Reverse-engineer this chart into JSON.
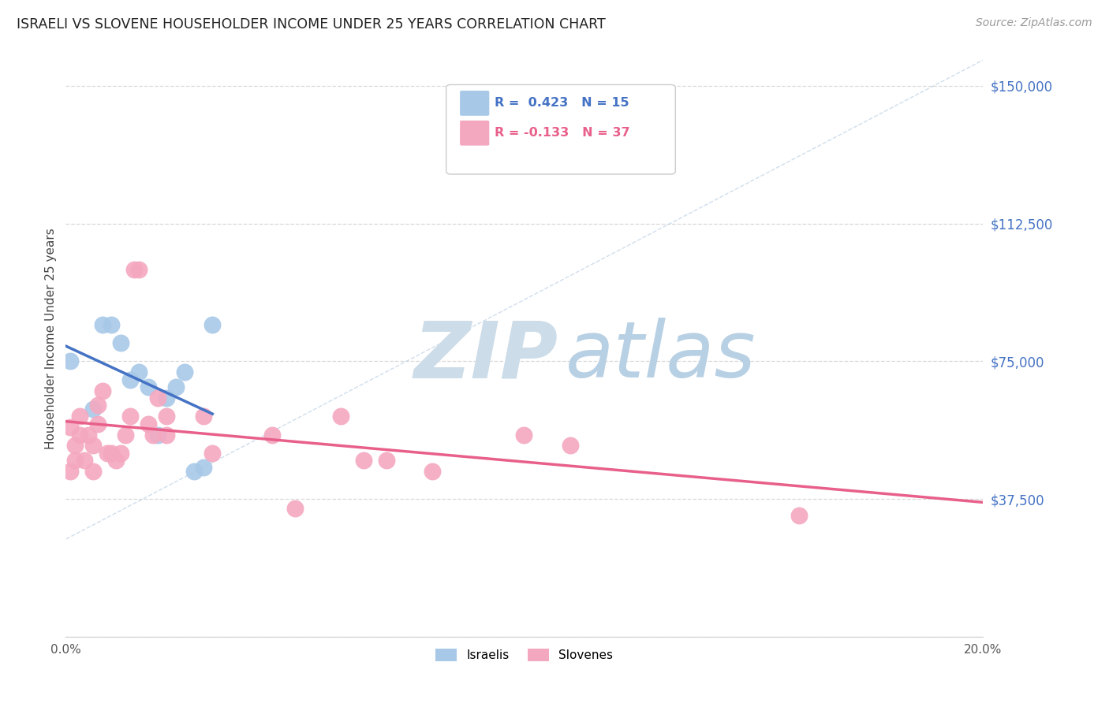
{
  "title": "ISRAELI VS SLOVENE HOUSEHOLDER INCOME UNDER 25 YEARS CORRELATION CHART",
  "source": "Source: ZipAtlas.com",
  "ylabel": "Householder Income Under 25 years",
  "xlim": [
    0.0,
    0.2
  ],
  "ylim": [
    0,
    162500
  ],
  "yticks": [
    0,
    37500,
    75000,
    112500,
    150000
  ],
  "ytick_labels": [
    "",
    "$37,500",
    "$75,000",
    "$112,500",
    "$150,000"
  ],
  "background_color": "#ffffff",
  "grid_color": "#d8d8d8",
  "israeli_color": "#a8c8e8",
  "slovene_color": "#f4a8c0",
  "israeli_R": 0.423,
  "israeli_N": 15,
  "slovene_R": -0.133,
  "slovene_N": 37,
  "regression_line_color_israeli": "#4472c4",
  "regression_line_color_slovene": "#e8608a",
  "diagonal_line_color": "#b0c8e0",
  "israeli_points_x": [
    0.001,
    0.006,
    0.008,
    0.01,
    0.012,
    0.014,
    0.016,
    0.018,
    0.02,
    0.022,
    0.024,
    0.026,
    0.028,
    0.03,
    0.032
  ],
  "israeli_points_y": [
    75000,
    62000,
    85000,
    85000,
    80000,
    70000,
    72000,
    68000,
    55000,
    65000,
    68000,
    72000,
    45000,
    46000,
    85000
  ],
  "slovene_points_x": [
    0.001,
    0.001,
    0.002,
    0.002,
    0.003,
    0.003,
    0.004,
    0.005,
    0.006,
    0.006,
    0.007,
    0.007,
    0.008,
    0.009,
    0.01,
    0.011,
    0.012,
    0.013,
    0.014,
    0.015,
    0.016,
    0.018,
    0.019,
    0.02,
    0.022,
    0.022,
    0.03,
    0.032,
    0.045,
    0.05,
    0.06,
    0.065,
    0.07,
    0.08,
    0.1,
    0.11,
    0.16
  ],
  "slovene_points_y": [
    57000,
    45000,
    52000,
    48000,
    60000,
    55000,
    48000,
    55000,
    52000,
    45000,
    63000,
    58000,
    67000,
    50000,
    50000,
    48000,
    50000,
    55000,
    60000,
    100000,
    100000,
    58000,
    55000,
    65000,
    60000,
    55000,
    60000,
    50000,
    55000,
    35000,
    60000,
    48000,
    48000,
    45000,
    55000,
    52000,
    33000
  ],
  "legend_isr_text": "R =  0.423   N = 15",
  "legend_slo_text": "R = -0.133   N = 37"
}
